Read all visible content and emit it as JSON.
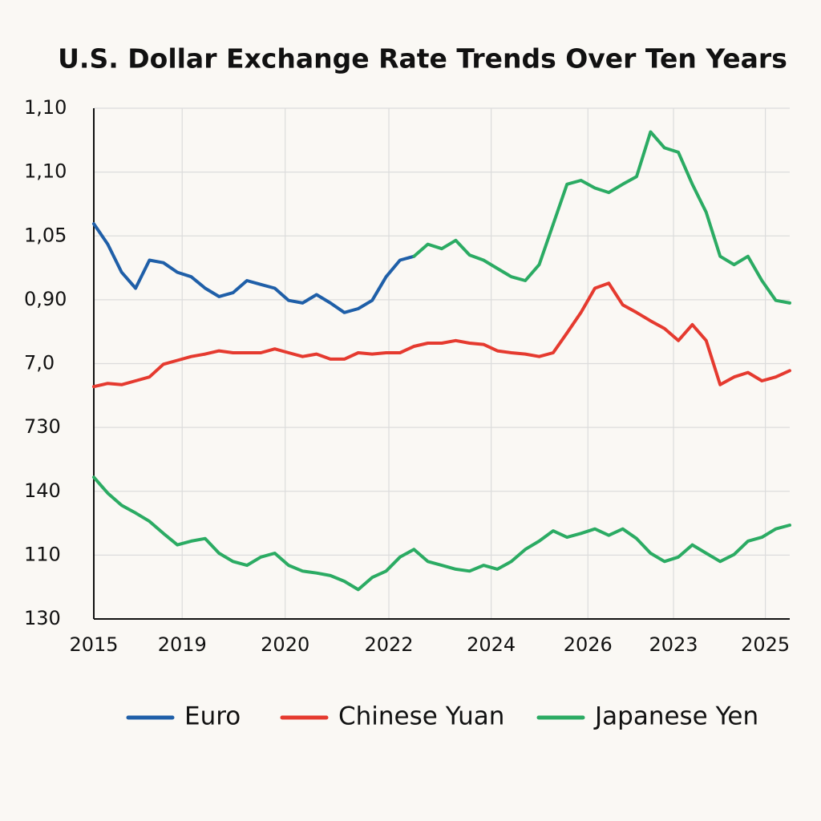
{
  "chart_data": {
    "type": "line",
    "title": "U.S. Dollar Exchange Rate Trends Over Ten Years",
    "x": [
      0,
      2,
      4,
      6,
      8,
      10,
      12,
      14,
      16,
      18,
      20,
      22,
      24,
      26,
      28,
      30,
      32,
      34,
      36,
      38,
      40,
      42,
      44,
      46,
      48,
      50,
      52,
      54,
      56,
      58,
      60,
      62,
      64,
      66,
      68,
      70,
      72,
      74,
      76,
      78,
      80,
      82,
      84,
      86,
      88,
      90,
      92,
      94,
      96,
      98,
      100
    ],
    "xlim": [
      0,
      100
    ],
    "xticks": [
      {
        "value": 0,
        "label": "2015"
      },
      {
        "value": 12.7,
        "label": "2019"
      },
      {
        "value": 27.5,
        "label": "2020"
      },
      {
        "value": 42.4,
        "label": "2022"
      },
      {
        "value": 57.1,
        "label": "2024"
      },
      {
        "value": 71.0,
        "label": "2026"
      },
      {
        "value": 83.3,
        "label": "2023"
      },
      {
        "value": 96.5,
        "label": "2025"
      }
    ],
    "ylim": [
      0,
      8
    ],
    "yticks": [
      {
        "value": 0,
        "label": "130"
      },
      {
        "value": 1,
        "label": "110"
      },
      {
        "value": 2,
        "label": "140"
      },
      {
        "value": 3,
        "label": "730"
      },
      {
        "value": 4,
        "label": "7,0"
      },
      {
        "value": 5,
        "label": "0,90"
      },
      {
        "value": 6,
        "label": "1,05"
      },
      {
        "value": 7,
        "label": "1,10"
      },
      {
        "value": 8,
        "label": "1,10"
      }
    ],
    "grid": true,
    "series": [
      {
        "name": "Euro",
        "color": "#1f5fa8",
        "values": [
          6.19,
          5.87,
          5.43,
          5.18,
          5.62,
          5.58,
          5.43,
          5.36,
          5.18,
          5.05,
          5.11,
          5.3,
          5.24,
          5.18,
          4.99,
          4.95,
          5.08,
          4.95,
          4.8,
          4.86,
          4.99,
          5.36,
          5.62,
          5.68,
          null,
          null,
          null,
          null,
          null,
          null,
          null,
          null,
          null,
          null,
          null,
          null,
          null,
          null,
          null,
          null,
          null,
          null,
          null,
          null,
          null,
          null,
          null,
          null,
          null,
          null,
          null
        ]
      },
      {
        "name": "Chinese Yuan",
        "color": "#e53a2f",
        "values": [
          3.64,
          3.69,
          3.67,
          3.73,
          3.79,
          3.99,
          4.05,
          4.11,
          4.15,
          4.2,
          4.17,
          4.17,
          4.17,
          4.23,
          4.17,
          4.11,
          4.15,
          4.07,
          4.07,
          4.17,
          4.15,
          4.17,
          4.17,
          4.27,
          4.32,
          4.32,
          4.36,
          4.32,
          4.3,
          4.2,
          4.17,
          4.15,
          4.11,
          4.17,
          4.48,
          4.8,
          5.18,
          5.26,
          4.92,
          4.8,
          4.67,
          4.55,
          4.36,
          4.61,
          4.36,
          3.67,
          3.79,
          3.86,
          3.73,
          3.79,
          3.89
        ]
      },
      {
        "name": "Japanese Yen",
        "color": "#2bab63",
        "values": [
          2.22,
          1.97,
          1.78,
          1.66,
          1.53,
          1.34,
          1.16,
          1.22,
          1.26,
          1.03,
          0.9,
          0.84,
          0.97,
          1.03,
          0.84,
          0.75,
          0.72,
          0.68,
          0.59,
          0.46,
          0.65,
          0.75,
          0.97,
          1.09,
          0.9,
          0.84,
          0.78,
          0.75,
          0.84,
          0.78,
          0.9,
          1.09,
          1.22,
          1.38,
          1.28,
          1.34,
          1.41,
          1.31,
          1.41,
          1.26,
          1.03,
          0.9,
          0.97,
          1.16,
          1.03,
          0.9,
          1.01,
          1.22,
          1.28,
          1.41,
          1.47
        ]
      },
      {
        "name": "Japanese Yen",
        "color": "#2bab63",
        "values": [
          null,
          null,
          null,
          null,
          null,
          null,
          null,
          null,
          null,
          null,
          null,
          null,
          null,
          null,
          null,
          null,
          null,
          null,
          null,
          null,
          null,
          null,
          null,
          5.68,
          5.87,
          5.8,
          5.93,
          5.7,
          5.62,
          5.49,
          5.36,
          5.3,
          5.55,
          6.18,
          6.81,
          6.87,
          6.75,
          6.68,
          6.81,
          6.93,
          7.63,
          7.38,
          7.31,
          6.81,
          6.37,
          5.68,
          5.55,
          5.68,
          5.3,
          4.99,
          4.95
        ]
      }
    ]
  }
}
